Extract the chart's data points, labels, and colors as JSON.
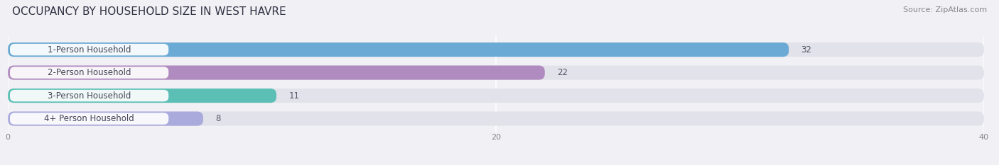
{
  "title": "OCCUPANCY BY HOUSEHOLD SIZE IN WEST HAVRE",
  "source": "Source: ZipAtlas.com",
  "categories": [
    "1-Person Household",
    "2-Person Household",
    "3-Person Household",
    "4+ Person Household"
  ],
  "values": [
    32,
    22,
    11,
    8
  ],
  "bar_colors": [
    "#6aaad4",
    "#b08bbf",
    "#5bbfb5",
    "#aaaadd"
  ],
  "xlim": [
    0,
    40
  ],
  "xticks": [
    0,
    20,
    40
  ],
  "title_fontsize": 11,
  "source_fontsize": 8,
  "label_fontsize": 8.5,
  "value_fontsize": 8.5,
  "background_color": "#f0f0f5",
  "bar_background_color": "#e2e2ea",
  "label_text_color": "#444455",
  "value_text_color": "#555566"
}
